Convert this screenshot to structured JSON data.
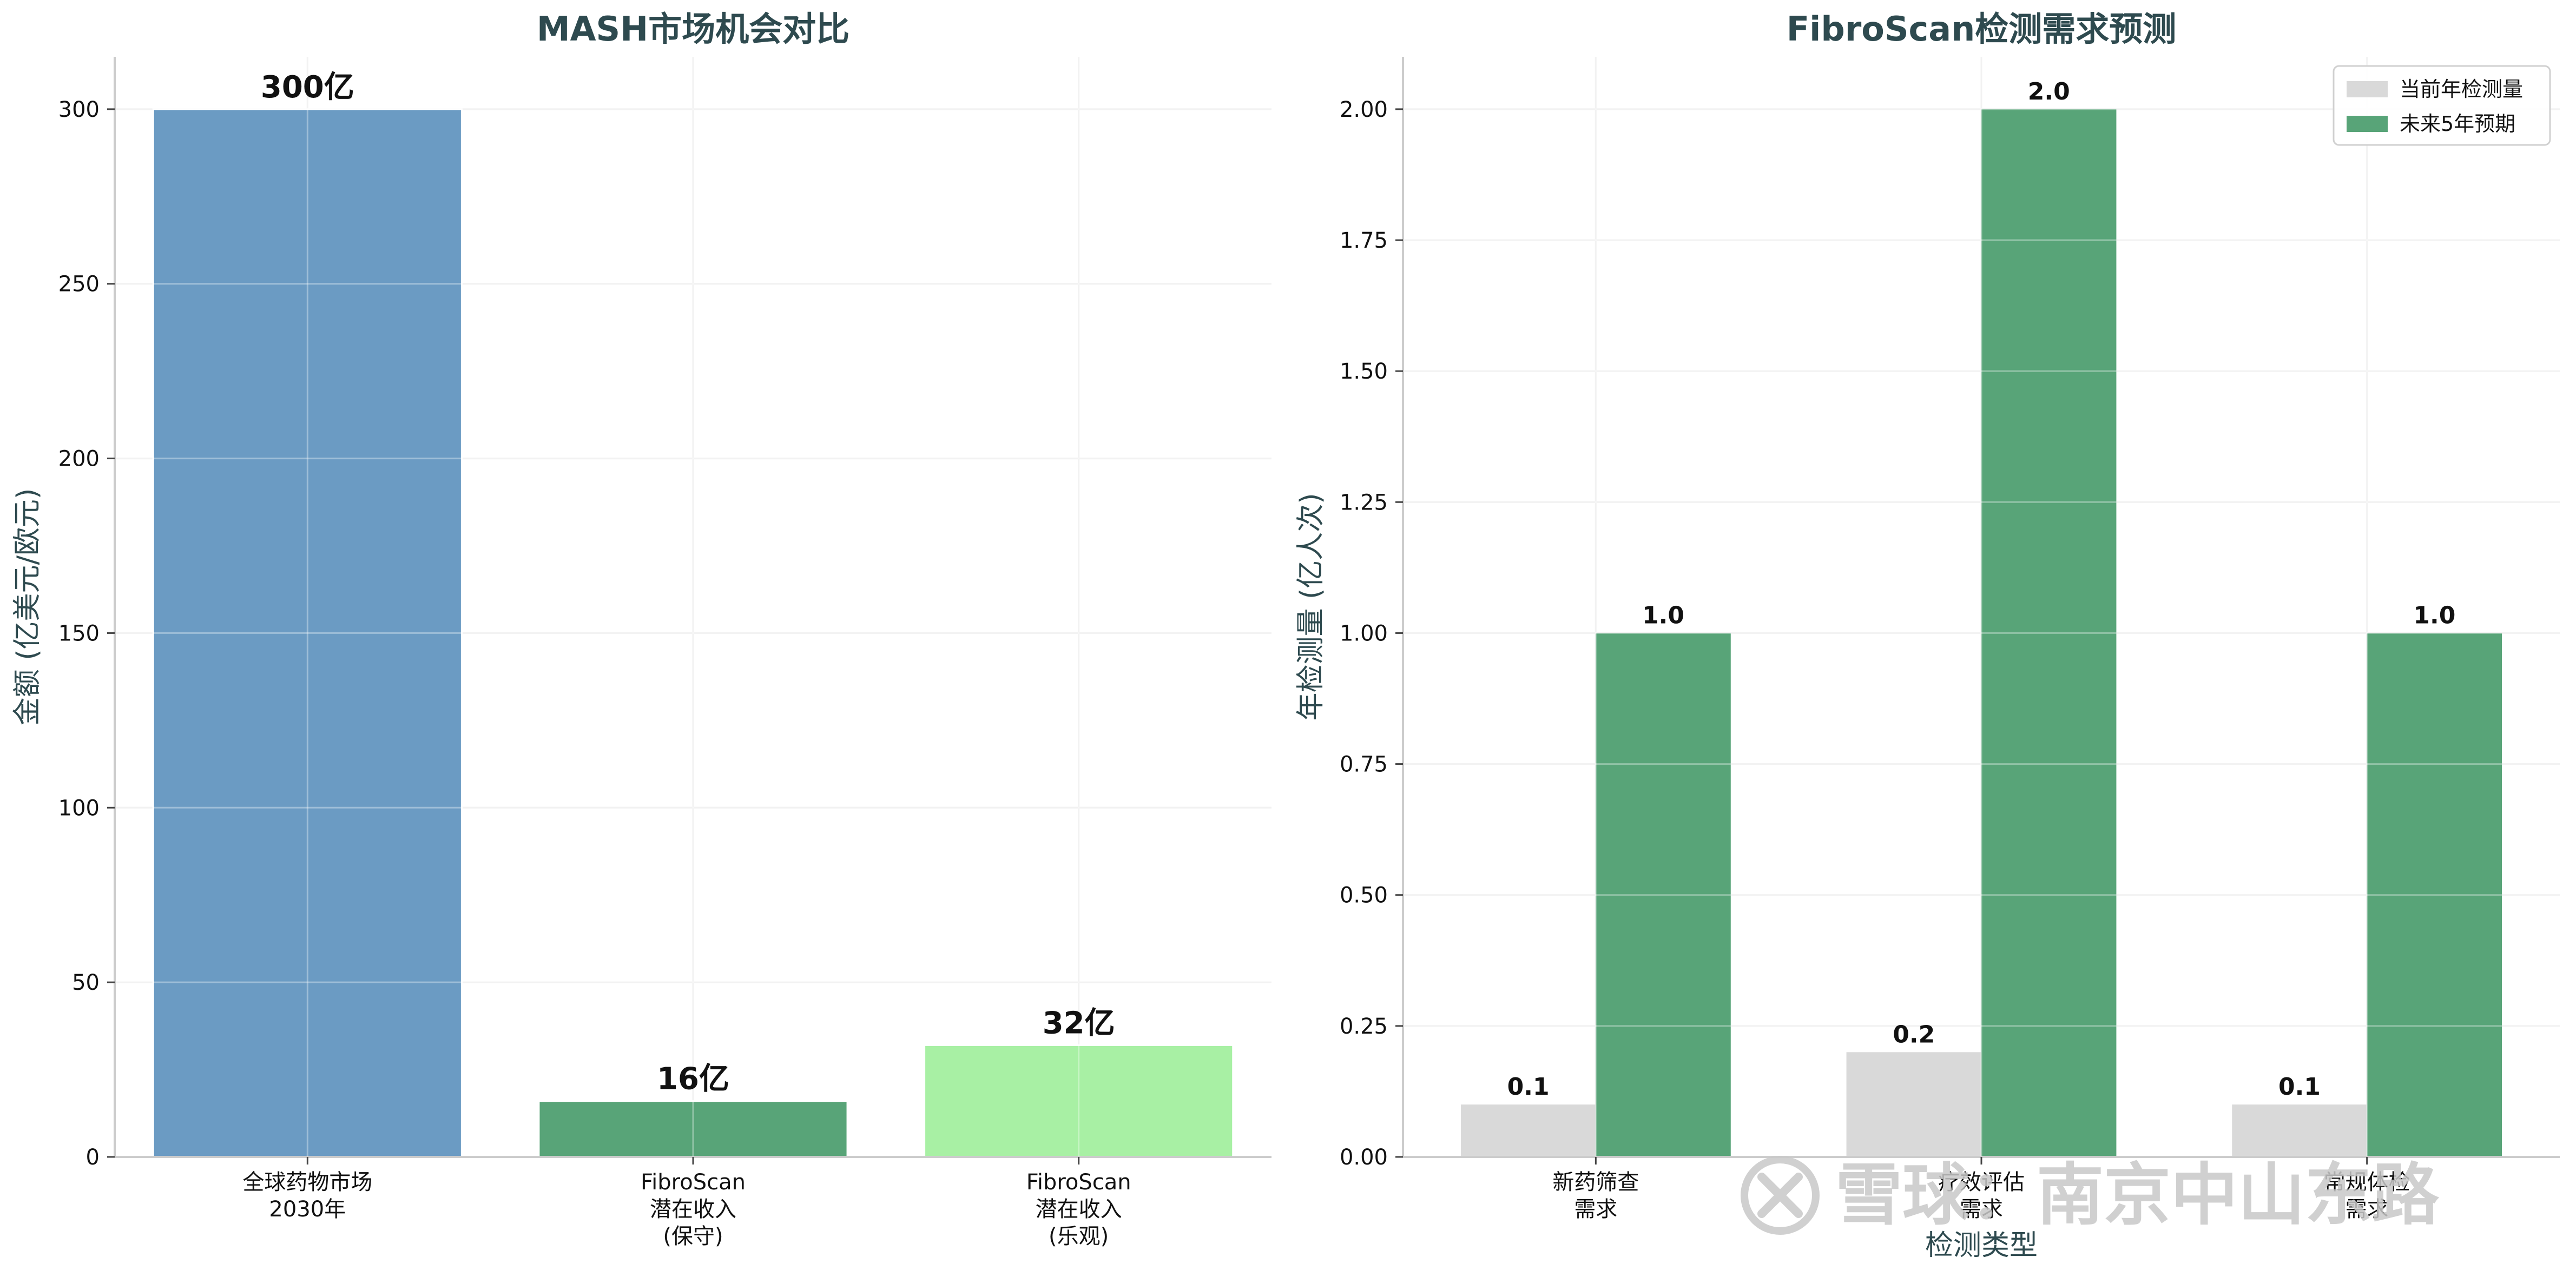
{
  "chart_data": [
    {
      "type": "bar",
      "title": "MASH市场机会对比",
      "xlabel": "",
      "ylabel": "金额 (亿美元/欧元)",
      "ylim": [
        0,
        315
      ],
      "yticks": [
        0,
        50,
        100,
        150,
        200,
        250,
        300
      ],
      "grid": true,
      "categories": [
        "全球药物市场\n2030年",
        "FibroScan\n潜在收入\n(保守)",
        "FibroScan\n潜在收入\n(乐观)"
      ],
      "values": [
        300,
        16,
        32
      ],
      "value_labels": [
        "300亿",
        "16亿",
        "32亿"
      ],
      "colors": [
        "#6b9bc3",
        "#58a478",
        "#a8f0a4"
      ]
    },
    {
      "type": "bar",
      "title": "FibroScan检测需求预测",
      "xlabel": "检测类型",
      "ylabel": "年检测量 (亿人次)",
      "ylim": [
        0,
        2.1
      ],
      "yticks": [
        "0.00",
        "0.25",
        "0.50",
        "0.75",
        "1.00",
        "1.25",
        "1.50",
        "1.75",
        "2.00"
      ],
      "grid": true,
      "legend_position": "top-right",
      "categories": [
        "新药筛查\n需求",
        "疗效评估\n需求",
        "常规体检\n需求"
      ],
      "series": [
        {
          "name": "当前年检测量",
          "values": [
            0.1,
            0.2,
            0.1
          ],
          "labels": [
            "0.1",
            "0.2",
            "0.1"
          ],
          "color": "#d9d9d9"
        },
        {
          "name": "未来5年预期",
          "values": [
            1.0,
            2.0,
            1.0
          ],
          "labels": [
            "1.0",
            "2.0",
            "1.0"
          ],
          "color": "#58a478"
        }
      ]
    }
  ],
  "watermark": {
    "text": "雪球：南京中山东路",
    "icon": "xueqiu-logo-icon"
  }
}
